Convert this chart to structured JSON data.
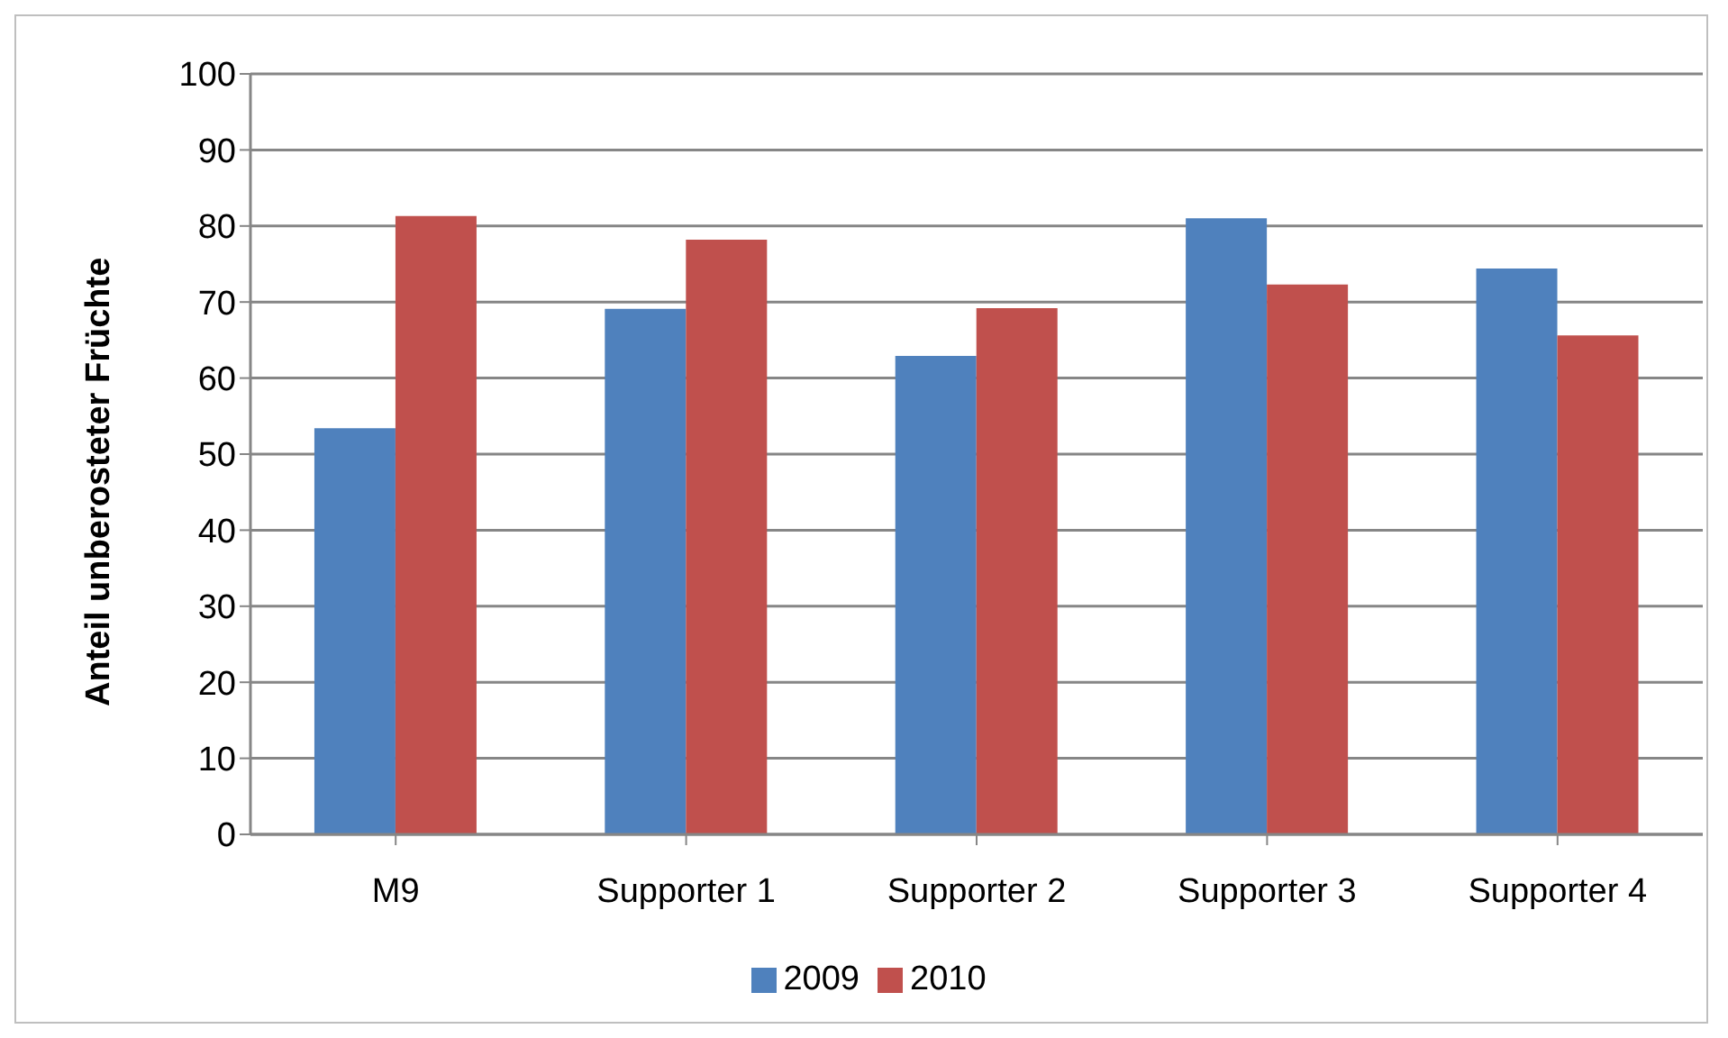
{
  "chart_data": {
    "type": "bar",
    "ylabel": "Anteil unberosteter Früchte",
    "categories": [
      "M9",
      "Supporter 1",
      "Supporter 2",
      "Supporter 3",
      "Supporter 4"
    ],
    "series": [
      {
        "name": "2009",
        "color": "#4f81bd",
        "values": [
          53.4,
          69.1,
          62.9,
          81.0,
          74.4
        ]
      },
      {
        "name": "2010",
        "color": "#c0504d",
        "values": [
          81.3,
          78.2,
          69.2,
          72.3,
          65.6
        ]
      }
    ],
    "ylim": [
      0,
      100
    ],
    "yticks": [
      0,
      10,
      20,
      30,
      40,
      50,
      60,
      70,
      80,
      90,
      100
    ],
    "grid": "y",
    "legend": "bottom"
  }
}
